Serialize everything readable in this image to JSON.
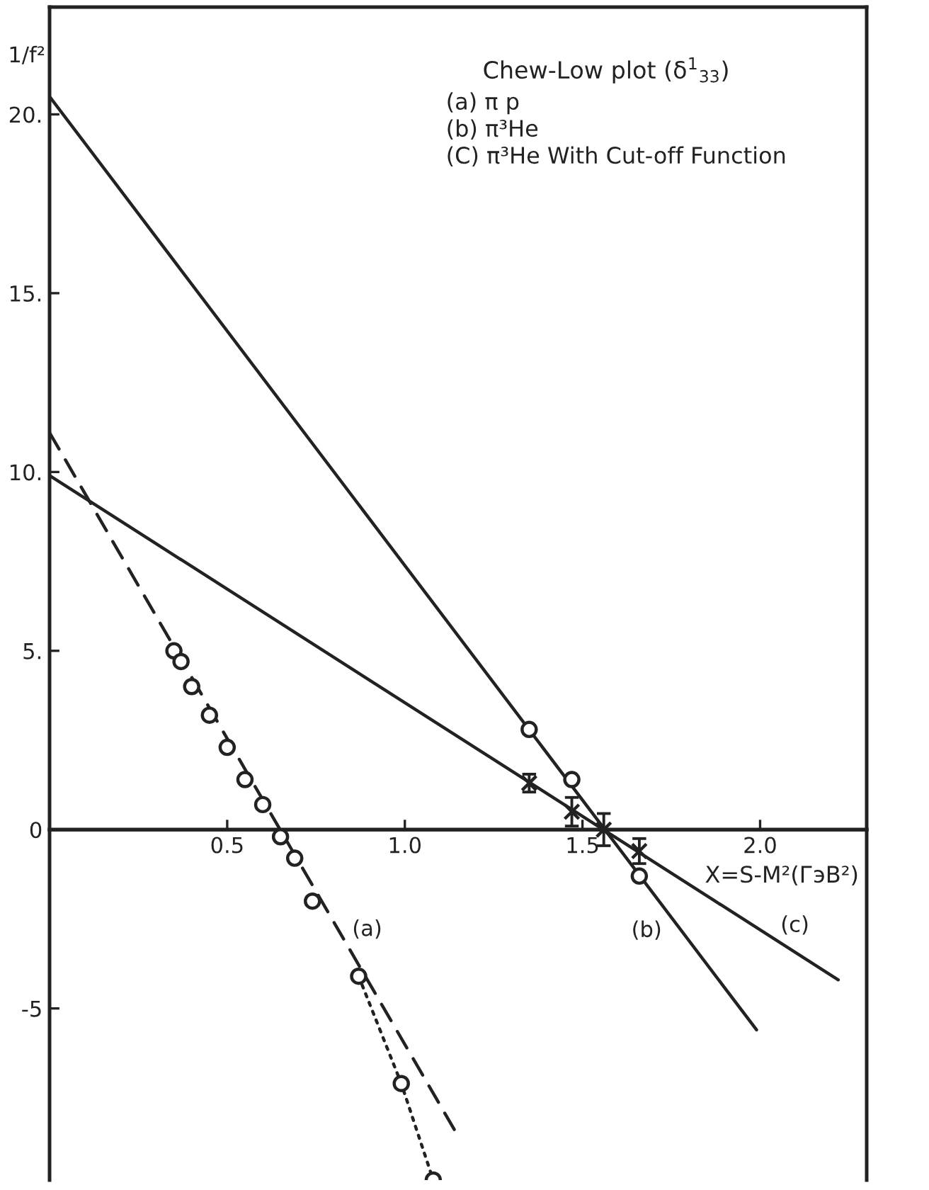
{
  "chart_data": {
    "type": "line",
    "title": "Chew-Low plot (δ$^{1}$$_{33}$)",
    "xlabel": "X=S-M²(ГэВ²)",
    "ylabel": "1/f²",
    "annotations": [
      "(a) π p",
      "(b) π³He",
      "(C) π³He With Cut-off Function"
    ],
    "xlim": [
      0,
      2.3
    ],
    "ylim": [
      -9.8,
      23
    ],
    "xticks": [
      {
        "value": 0.5,
        "label": "0.5"
      },
      {
        "value": 1,
        "label": "1.0"
      },
      {
        "value": 1.5,
        "label": "1.5"
      },
      {
        "value": 2,
        "label": "2.0"
      }
    ],
    "yticks": [
      {
        "value": -5,
        "label": "-5"
      },
      0,
      {
        "value": 5,
        "label": "5."
      },
      {
        "value": 10,
        "label": "10."
      },
      {
        "value": 15,
        "label": "15."
      },
      {
        "value": 20,
        "label": "20."
      }
    ],
    "series": [
      {
        "type": "scatter",
        "marker": "circle",
        "color": "#222222",
        "x": [
          0.35,
          0.37,
          0.4,
          0.45,
          0.5,
          0.55,
          0.6,
          0.65,
          0.69,
          0.74,
          0.87,
          0.99,
          1.08
        ],
        "values": [
          5.0,
          4.7,
          4.0,
          3.2,
          2.3,
          1.4,
          0.7,
          -0.2,
          -0.8,
          -2.0,
          -4.1,
          -7.1,
          -9.8
        ]
      },
      {
        "name": "(a)",
        "line_style": "dashed",
        "color": "#222222",
        "x": [
          0,
          1.14
        ],
        "values": [
          11.1,
          -8.4
        ]
      },
      {
        "line_style": "dotted",
        "color": "#222222",
        "x": [
          0.87,
          0.99,
          1.08
        ],
        "values": [
          -4.1,
          -7.1,
          -9.8
        ]
      },
      {
        "name": "(b)",
        "line_style": "solid",
        "color": "#222222",
        "x": [
          0,
          1.99
        ],
        "values": [
          20.5,
          -5.6
        ]
      },
      {
        "type": "scatter",
        "marker": "circle",
        "color": "#222222",
        "x": [
          1.35,
          1.47,
          1.66
        ],
        "values": [
          2.8,
          1.4,
          -1.3
        ]
      },
      {
        "name": "(c)",
        "line_style": "solid",
        "color": "#222222",
        "x": [
          0,
          2.22
        ],
        "values": [
          9.9,
          -4.2
        ]
      },
      {
        "type": "scatter",
        "marker": "cross",
        "color": "#222222",
        "x": [
          1.35,
          1.47,
          1.56,
          1.66
        ],
        "values": [
          1.3,
          0.5,
          0.0,
          -0.6
        ],
        "errors": [
          0.25,
          0.4,
          0.45,
          0.35
        ]
      }
    ]
  }
}
